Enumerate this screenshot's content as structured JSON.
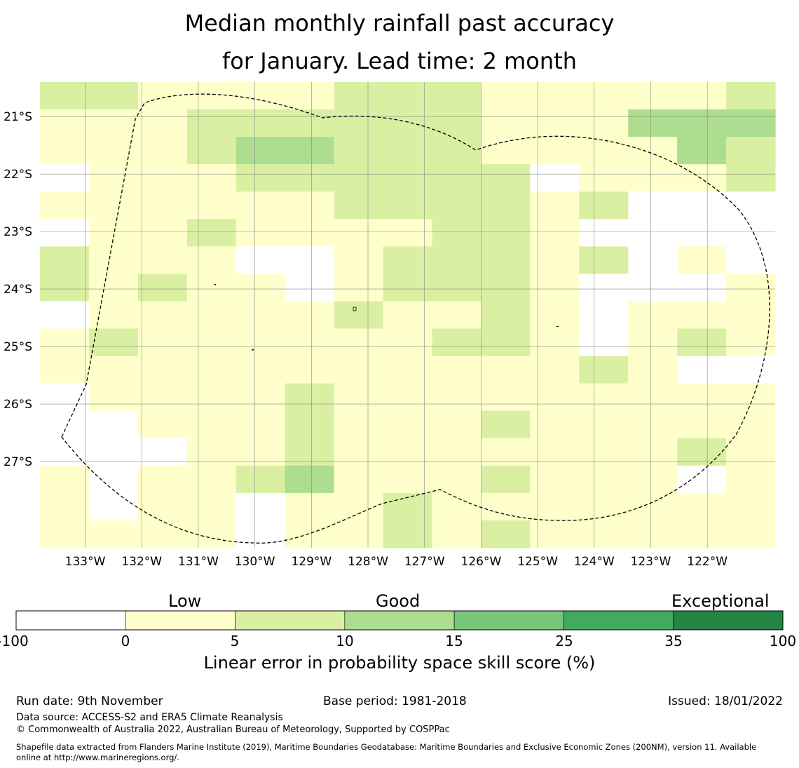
{
  "title": {
    "line1": "Median monthly rainfall past accuracy",
    "line2": "for January. Lead time: 2 month"
  },
  "map": {
    "lon_range": [
      -133.8,
      -120.8
    ],
    "lat_range": [
      -28.5,
      -20.4
    ],
    "lon_ticks": [
      -133,
      -132,
      -131,
      -130,
      -129,
      -128,
      -127,
      -126,
      -125,
      -124,
      -123,
      -122
    ],
    "lon_tick_labels": [
      "133°W",
      "132°W",
      "131°W",
      "130°W",
      "129°W",
      "128°W",
      "127°W",
      "126°W",
      "125°W",
      "124°W",
      "123°W",
      "122°W"
    ],
    "lat_ticks": [
      -21,
      -22,
      -23,
      -24,
      -25,
      -26,
      -27
    ],
    "lat_tick_labels": [
      "21°S",
      "22°S",
      "23°S",
      "24°S",
      "25°S",
      "26°S",
      "27°S"
    ],
    "grid_categories": [
      "221111222111112",
      "111222222111333",
      "111233222111132",
      "011122222201112",
      "111111222212000",
      "011211112210000",
      "211100122212010",
      "212110122210001",
      "011111211210111",
      "121111112210121",
      "111111111112100",
      "011112111111111",
      "001112111211111",
      "000112111111121",
      "101123111211101",
      "101101121111111",
      "111101121211111"
    ],
    "category_colors": [
      "#ffffff",
      "#ffffcc",
      "#d9f0a3",
      "#addd8e",
      "#78c679",
      "#41ab5d",
      "#238443"
    ],
    "boundary_color": "#000000"
  },
  "legend": {
    "labels": {
      "low": "Low",
      "good": "Good",
      "exceptional": "Exceptional"
    },
    "ticks": [
      "-100",
      "0",
      "5",
      "10",
      "15",
      "25",
      "35",
      "100"
    ],
    "colors": [
      "#ffffff",
      "#ffffcc",
      "#d9f0a3",
      "#addd8e",
      "#78c679",
      "#41ab5d",
      "#238443"
    ],
    "axis_label": "Linear error in probability space skill score (%)"
  },
  "footer": {
    "run_date": "Run date: 9th November",
    "base_period": "Base period: 1981-2018",
    "issued": "Issued: 18/01/2022",
    "data_source": "Data source: ACCESS-S2 and ERA5 Climate Reanalysis",
    "copyright": "© Commonwealth of Australia 2022, Australian Bureau of Meteorology, Supported by COSPPac",
    "shapefile_line1": "Shapefile data extracted from Flanders Marine Institute (2019), Maritime Boundaries Geodatabase: Maritime Boundaries and Exclusive Economic Zones (200NM), version 11. Available",
    "shapefile_line2": "online at http://www.marineregions.org/."
  }
}
